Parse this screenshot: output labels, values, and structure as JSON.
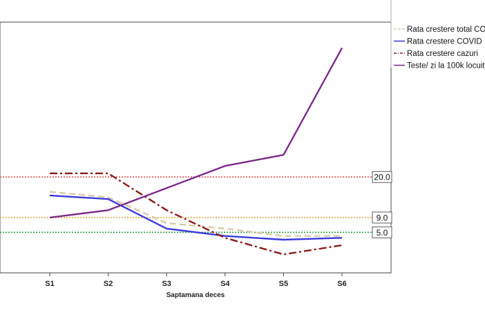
{
  "chart_data": {
    "type": "line",
    "xlabel": "Saptamana deces",
    "categories": [
      "S1",
      "S2",
      "S3",
      "S4",
      "S5",
      "S6"
    ],
    "series": [
      {
        "name": "Rata crestere total COVID",
        "color": "#d9c9a6",
        "dash": "dashed",
        "values": [
          16.0,
          14.5,
          7.5,
          6.0,
          4.0,
          4.0
        ]
      },
      {
        "name": "Rata crestere COVID",
        "color": "#3b3bdb",
        "dash": "solid",
        "values": [
          15.0,
          14.0,
          6.0,
          4.0,
          3.0,
          3.5
        ]
      },
      {
        "name": "Rata crestere cazuri",
        "color": "#8b1a1a",
        "dash": "dashdot",
        "values": [
          21.0,
          21.0,
          11.0,
          3.5,
          -1.0,
          1.5
        ]
      },
      {
        "name": "Teste/ zi la 100k locuitori",
        "color": "#7a2a8a",
        "dash": "solid",
        "values": [
          9.0,
          11.0,
          17.0,
          23.0,
          26.0,
          55.0
        ]
      }
    ],
    "reference_lines": [
      {
        "label": "20.0",
        "value": 20.0,
        "color": "#e05050"
      },
      {
        "label": "9.0",
        "value": 9.0,
        "color": "#e8a640"
      },
      {
        "label": "5.0",
        "value": 5.0,
        "color": "#2e9a3e"
      }
    ],
    "ylim": [
      -6,
      62
    ],
    "legend_position": "top-right"
  }
}
